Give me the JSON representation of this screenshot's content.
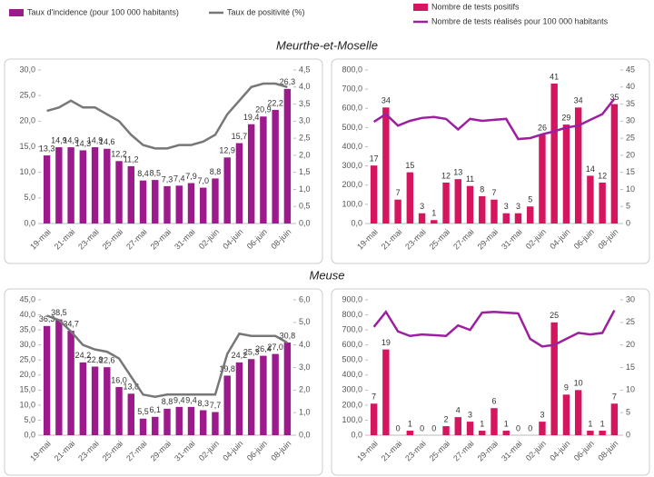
{
  "chart_data": [
    {
      "type": "combo",
      "title": "Meurthe-et-Moselle",
      "categories": [
        "19-mai",
        null,
        "21-mai",
        null,
        "23-mai",
        null,
        "25-mai",
        null,
        "27-mai",
        null,
        "29-mai",
        null,
        "31-mai",
        null,
        "02-juin",
        null,
        "04-juin",
        null,
        "06-juin",
        null,
        "08-juin"
      ],
      "series": [
        {
          "name": "Taux d'incidence (pour 100 000 habitants)",
          "type": "bar",
          "color": "#9c1a8c",
          "values": [
            13.3,
            14.9,
            14.9,
            14.3,
            14.9,
            14.6,
            12.2,
            11.2,
            8.4,
            8.5,
            7.3,
            7.4,
            7.9,
            7.0,
            8.8,
            12.9,
            15.7,
            19.4,
            20.9,
            22.2,
            26.3
          ],
          "value_labels": [
            "13,3",
            "14,9",
            "14,9",
            "14,3",
            "14,9",
            "14,6",
            "12,2",
            "11,2",
            "8,4",
            "8,5",
            "7,3",
            "7,4",
            "7,9",
            "7,0",
            "8,8",
            "12,9",
            "15,7",
            "19,4",
            "20,9",
            "22,2",
            "26,3"
          ]
        },
        {
          "name": "Taux de positivité (%)",
          "type": "line",
          "axis": "y2",
          "color": "#777777",
          "values": [
            3.3,
            3.4,
            3.6,
            3.4,
            3.4,
            3.2,
            3.0,
            2.6,
            2.3,
            2.2,
            2.2,
            2.3,
            2.3,
            2.4,
            2.6,
            3.2,
            3.6,
            4.0,
            4.1,
            4.1,
            4.0
          ]
        }
      ],
      "ylim": [
        0,
        30
      ],
      "yticks": [
        {
          "value": 0,
          "label": "0,0"
        },
        {
          "value": 5,
          "label": "5,0"
        },
        {
          "value": 10,
          "label": "10,0"
        },
        {
          "value": 15,
          "label": "15,0"
        },
        {
          "value": 20,
          "label": "20,0"
        },
        {
          "value": 25,
          "label": "25,0"
        },
        {
          "value": 30,
          "label": "30,0"
        }
      ],
      "y2lim": [
        0,
        4.5
      ],
      "y2ticks": [
        {
          "value": 0,
          "label": "0,0"
        },
        {
          "value": 0.5,
          "label": "0,5"
        },
        {
          "value": 1,
          "label": "1,0"
        },
        {
          "value": 1.5,
          "label": "1,5"
        },
        {
          "value": 2,
          "label": "2,0"
        },
        {
          "value": 2.5,
          "label": "2,5"
        },
        {
          "value": 3,
          "label": "3,0"
        },
        {
          "value": 3.5,
          "label": "3,5"
        },
        {
          "value": 4,
          "label": "4,0"
        },
        {
          "value": 4.5,
          "label": "4,5"
        }
      ]
    },
    {
      "type": "combo",
      "categories": [
        "19-mai",
        null,
        "21-mai",
        null,
        "23-mai",
        null,
        "25-mai",
        null,
        "27-mai",
        null,
        "29-mai",
        null,
        "31-mai",
        null,
        "02-juin",
        null,
        "04-juin",
        null,
        "06-juin",
        null,
        "08-juin"
      ],
      "series": [
        {
          "name": "Nombre de tests positifs",
          "type": "bar",
          "axis": "y2",
          "color": "#d6155f",
          "values": [
            17,
            34,
            7,
            15,
            3,
            1,
            12,
            13,
            11,
            8,
            7,
            3,
            3,
            5,
            26,
            41,
            29,
            34,
            14,
            12,
            35
          ]
        },
        {
          "name": "Nombre de tests réalisés pour 100 000 habitants",
          "type": "line",
          "color": "#9b1fa0",
          "values": [
            530,
            570,
            510,
            535,
            550,
            555,
            545,
            490,
            545,
            535,
            540,
            545,
            440,
            445,
            465,
            480,
            500,
            510,
            540,
            570,
            650
          ]
        }
      ],
      "ylim": [
        0,
        800
      ],
      "yticks": [
        {
          "value": 0,
          "label": "0,0"
        },
        {
          "value": 100,
          "label": "100,0"
        },
        {
          "value": 200,
          "label": "200,0"
        },
        {
          "value": 300,
          "label": "300,0"
        },
        {
          "value": 400,
          "label": "400,0"
        },
        {
          "value": 500,
          "label": "500,0"
        },
        {
          "value": 600,
          "label": "600,0"
        },
        {
          "value": 700,
          "label": "700,0"
        },
        {
          "value": 800,
          "label": "800,0"
        }
      ],
      "y2lim": [
        0,
        45
      ],
      "y2ticks": [
        0,
        5,
        10,
        15,
        20,
        25,
        30,
        35,
        40,
        45
      ]
    },
    {
      "type": "combo",
      "title": "Meuse",
      "categories": [
        "19-mai",
        null,
        "21-mai",
        null,
        "23-mai",
        null,
        "25-mai",
        null,
        "27-mai",
        null,
        "29-mai",
        null,
        "31-mai",
        null,
        "02-juin",
        null,
        "04-juin",
        null,
        "06-juin",
        null,
        "08-juin"
      ],
      "series": [
        {
          "type": "bar",
          "color": "#9c1a8c",
          "values": [
            36.3,
            38.5,
            34.7,
            24.2,
            22.8,
            22.6,
            16.0,
            13.8,
            5.5,
            6.1,
            8.8,
            9.4,
            9.4,
            8.3,
            7.7,
            19.8,
            24.2,
            25.3,
            26.4,
            27.0,
            30.8
          ],
          "value_labels": [
            "36,3",
            "38,5",
            "34,7",
            "24,2",
            "22,8",
            "22,6",
            "16,0",
            "13,8",
            "5,5",
            "6,1",
            "8,8",
            "9,4",
            "9,4",
            "8,3",
            "7,7",
            "19,8",
            "24,2",
            "25,3",
            "26,4",
            "27,0",
            "30,8"
          ]
        },
        {
          "type": "line",
          "axis": "y2",
          "color": "#777777",
          "values": [
            5.3,
            5.1,
            4.6,
            4.0,
            3.8,
            3.7,
            3.4,
            2.6,
            1.8,
            1.7,
            1.8,
            1.8,
            1.8,
            1.8,
            1.8,
            3.6,
            4.5,
            4.4,
            4.4,
            4.4,
            4.1
          ]
        }
      ],
      "ylim": [
        0,
        45
      ],
      "yticks": [
        {
          "value": 0,
          "label": "0,0"
        },
        {
          "value": 5,
          "label": "5,0"
        },
        {
          "value": 10,
          "label": "10,0"
        },
        {
          "value": 15,
          "label": "15,0"
        },
        {
          "value": 20,
          "label": "20,0"
        },
        {
          "value": 25,
          "label": "25,0"
        },
        {
          "value": 30,
          "label": "30,0"
        },
        {
          "value": 35,
          "label": "35,0"
        },
        {
          "value": 40,
          "label": "40,0"
        },
        {
          "value": 45,
          "label": "45,0"
        }
      ],
      "y2lim": [
        0,
        6
      ],
      "y2ticks": [
        {
          "value": 0,
          "label": "0,0"
        },
        {
          "value": 1,
          "label": "1,0"
        },
        {
          "value": 2,
          "label": "2,0"
        },
        {
          "value": 3,
          "label": "3,0"
        },
        {
          "value": 4,
          "label": "4,0"
        },
        {
          "value": 5,
          "label": "5,0"
        },
        {
          "value": 6,
          "label": "6,0"
        }
      ]
    },
    {
      "type": "combo",
      "categories": [
        "19-mai",
        null,
        "21-mai",
        null,
        "23-mai",
        null,
        "25-mai",
        null,
        "27-mai",
        null,
        "29-mai",
        null,
        "31-mai",
        null,
        "02-juin",
        null,
        "04-juin",
        null,
        "06-juin",
        null,
        "08-juin"
      ],
      "series": [
        {
          "type": "bar",
          "axis": "y2",
          "color": "#d6155f",
          "values": [
            7,
            19,
            0,
            1,
            0,
            0,
            2,
            4,
            3,
            1,
            6,
            1,
            0,
            0,
            3,
            25,
            9,
            10,
            1,
            1,
            7
          ]
        },
        {
          "type": "line",
          "color": "#9b1fa0",
          "values": [
            720,
            820,
            690,
            660,
            670,
            665,
            660,
            730,
            700,
            815,
            820,
            815,
            810,
            640,
            590,
            600,
            640,
            680,
            670,
            680,
            830
          ]
        }
      ],
      "ylim": [
        0,
        900
      ],
      "yticks": [
        {
          "value": 0,
          "label": "0,0"
        },
        {
          "value": 100,
          "label": "100,0"
        },
        {
          "value": 200,
          "label": "200,0"
        },
        {
          "value": 300,
          "label": "300,0"
        },
        {
          "value": 400,
          "label": "400,0"
        },
        {
          "value": 500,
          "label": "500,0"
        },
        {
          "value": 600,
          "label": "600,0"
        },
        {
          "value": 700,
          "label": "700,0"
        },
        {
          "value": 800,
          "label": "800,0"
        },
        {
          "value": 900,
          "label": "900,0"
        }
      ],
      "y2lim": [
        0,
        30
      ],
      "y2ticks": [
        0,
        5,
        10,
        15,
        20,
        25,
        30
      ]
    }
  ]
}
